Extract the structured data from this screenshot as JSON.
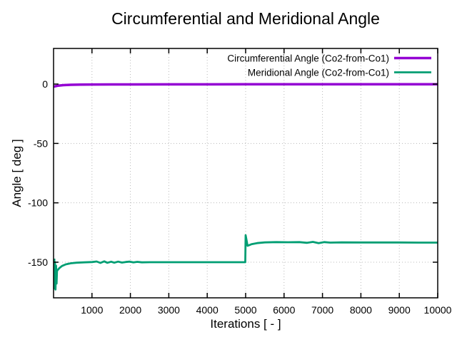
{
  "chart_data": {
    "type": "line",
    "title": "Circumferential and Meridional Angle",
    "xlabel": "Iterations [ - ]",
    "ylabel": "Angle [ deg ]",
    "xlim": [
      0,
      10000
    ],
    "ylim": [
      -180,
      30
    ],
    "xticks": [
      1000,
      2000,
      3000,
      4000,
      5000,
      6000,
      7000,
      8000,
      9000,
      10000
    ],
    "yticks": [
      0,
      -50,
      -100,
      -150
    ],
    "grid": "dotted",
    "grid_color": "#b8b8b8",
    "border_color": "#000000",
    "legend_position": "top-right-inside",
    "series": [
      {
        "name": "Circumferential Angle (Co2-from-Co1)",
        "color": "#9400d3",
        "width": 3.5,
        "points": [
          [
            0,
            -2.2
          ],
          [
            50,
            -1.8
          ],
          [
            120,
            -1.3
          ],
          [
            250,
            -0.9
          ],
          [
            450,
            -0.6
          ],
          [
            700,
            -0.45
          ],
          [
            1000,
            -0.35
          ],
          [
            1500,
            -0.3
          ],
          [
            2000,
            -0.28
          ],
          [
            3000,
            -0.25
          ],
          [
            4000,
            -0.22
          ],
          [
            5000,
            -0.2
          ],
          [
            6000,
            -0.18
          ],
          [
            7000,
            -0.15
          ],
          [
            8000,
            -0.12
          ],
          [
            9000,
            -0.1
          ],
          [
            10000,
            -0.1
          ]
        ]
      },
      {
        "name": "Meridional Angle (Co2-from-Co1)",
        "color": "#009e73",
        "width": 2.8,
        "points": [
          [
            20,
            -147
          ],
          [
            26,
            -172
          ],
          [
            38,
            -150
          ],
          [
            50,
            -173
          ],
          [
            65,
            -153
          ],
          [
            78,
            -168
          ],
          [
            90,
            -157.5
          ],
          [
            110,
            -156.5
          ],
          [
            150,
            -155
          ],
          [
            220,
            -153.2
          ],
          [
            320,
            -151.8
          ],
          [
            450,
            -150.9
          ],
          [
            600,
            -150.4
          ],
          [
            800,
            -150.1
          ],
          [
            1000,
            -149.9
          ],
          [
            1120,
            -149.4
          ],
          [
            1220,
            -150.6
          ],
          [
            1320,
            -149.3
          ],
          [
            1400,
            -150.5
          ],
          [
            1500,
            -149.6
          ],
          [
            1580,
            -150.4
          ],
          [
            1680,
            -149.5
          ],
          [
            1780,
            -150.3
          ],
          [
            1880,
            -149.8
          ],
          [
            1980,
            -149.5
          ],
          [
            2080,
            -150.2
          ],
          [
            2180,
            -149.7
          ],
          [
            2300,
            -150.1
          ],
          [
            2500,
            -150.0
          ],
          [
            3000,
            -150.0
          ],
          [
            3500,
            -150.0
          ],
          [
            4000,
            -150.0
          ],
          [
            4500,
            -150.0
          ],
          [
            4990,
            -150.0
          ],
          [
            5000,
            -127.3
          ],
          [
            5050,
            -136.2
          ],
          [
            5150,
            -134.9
          ],
          [
            5300,
            -133.9
          ],
          [
            5500,
            -133.3
          ],
          [
            5800,
            -133.1
          ],
          [
            6100,
            -133.2
          ],
          [
            6400,
            -133.1
          ],
          [
            6600,
            -133.7
          ],
          [
            6750,
            -132.9
          ],
          [
            6900,
            -133.9
          ],
          [
            7050,
            -133.1
          ],
          [
            7200,
            -133.5
          ],
          [
            7500,
            -133.3
          ],
          [
            8000,
            -133.4
          ],
          [
            8500,
            -133.4
          ],
          [
            9000,
            -133.4
          ],
          [
            9500,
            -133.5
          ],
          [
            10000,
            -133.5
          ]
        ]
      }
    ]
  }
}
